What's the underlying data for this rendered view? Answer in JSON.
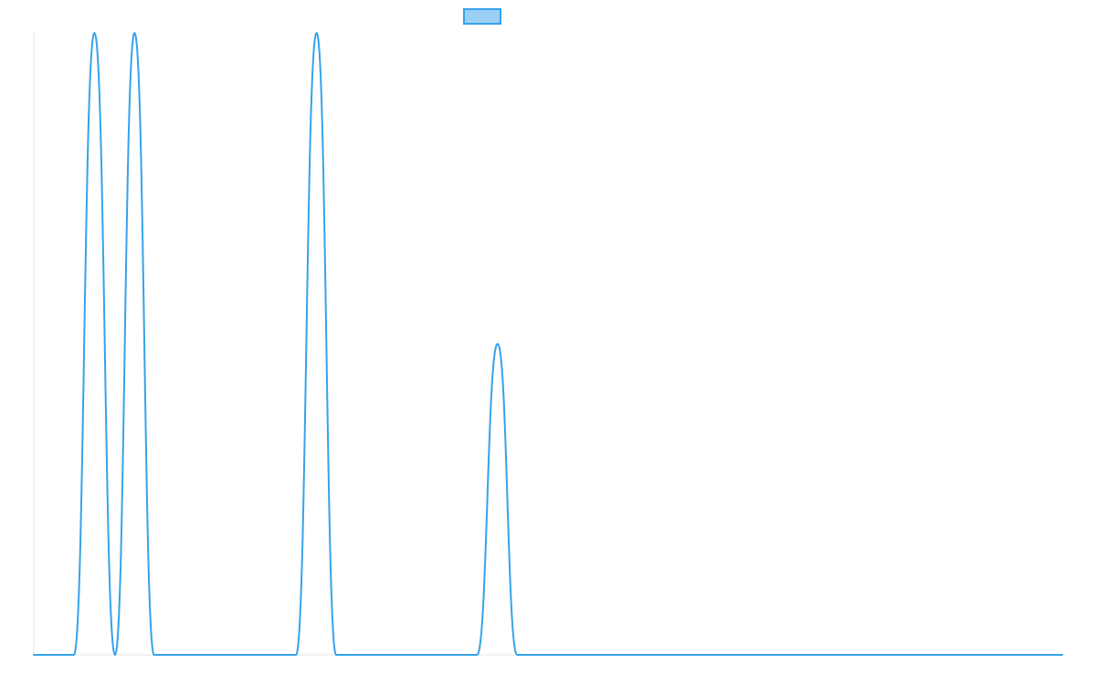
{
  "chart_data": {
    "type": "line",
    "title": "",
    "xlabel": "",
    "ylabel": "",
    "xlim": [
      0,
      1
    ],
    "ylim": [
      0,
      1
    ],
    "grid": false,
    "legend_position": "top-center",
    "series": [
      {
        "color": "#36a2eb",
        "fill_color": "#9ad0f5",
        "points": [
          [
            0.0,
            0
          ],
          [
            0.039,
            0
          ],
          [
            0.059,
            1
          ],
          [
            0.079,
            0
          ],
          [
            0.098,
            1
          ],
          [
            0.117,
            0
          ],
          [
            0.255,
            0
          ],
          [
            0.275,
            1
          ],
          [
            0.294,
            0
          ],
          [
            0.431,
            0
          ],
          [
            0.451,
            0.5
          ],
          [
            0.47,
            0
          ],
          [
            1.0,
            0
          ]
        ]
      }
    ]
  },
  "colors": {
    "series_line": "#36a2eb",
    "legend_fill": "#9ad0f5",
    "axis": "#e6e6e6"
  }
}
